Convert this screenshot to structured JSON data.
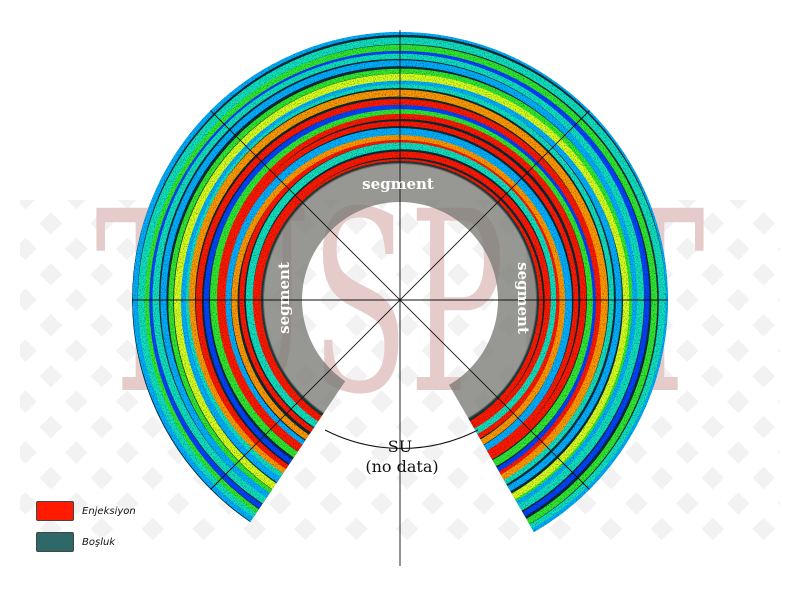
{
  "watermark": {
    "text": "TÜSPET",
    "color": "#c98e8e"
  },
  "scan": {
    "segment_labels": [
      "segment",
      "segment",
      "segment"
    ],
    "water_label_line1": "SU",
    "water_label_line2": "(no data)",
    "colors": {
      "injection": "#ff1a00",
      "void": "#2f6868",
      "ramp": [
        "#0a2a3a",
        "#0044ff",
        "#00b0ff",
        "#10e0c0",
        "#30e830",
        "#d8ff20",
        "#ff9900",
        "#ff1a00"
      ]
    }
  },
  "legend": [
    {
      "label": "Enjeksiyon",
      "color": "#ff1a00"
    },
    {
      "label": "Boşluk",
      "color": "#2f6868"
    }
  ]
}
